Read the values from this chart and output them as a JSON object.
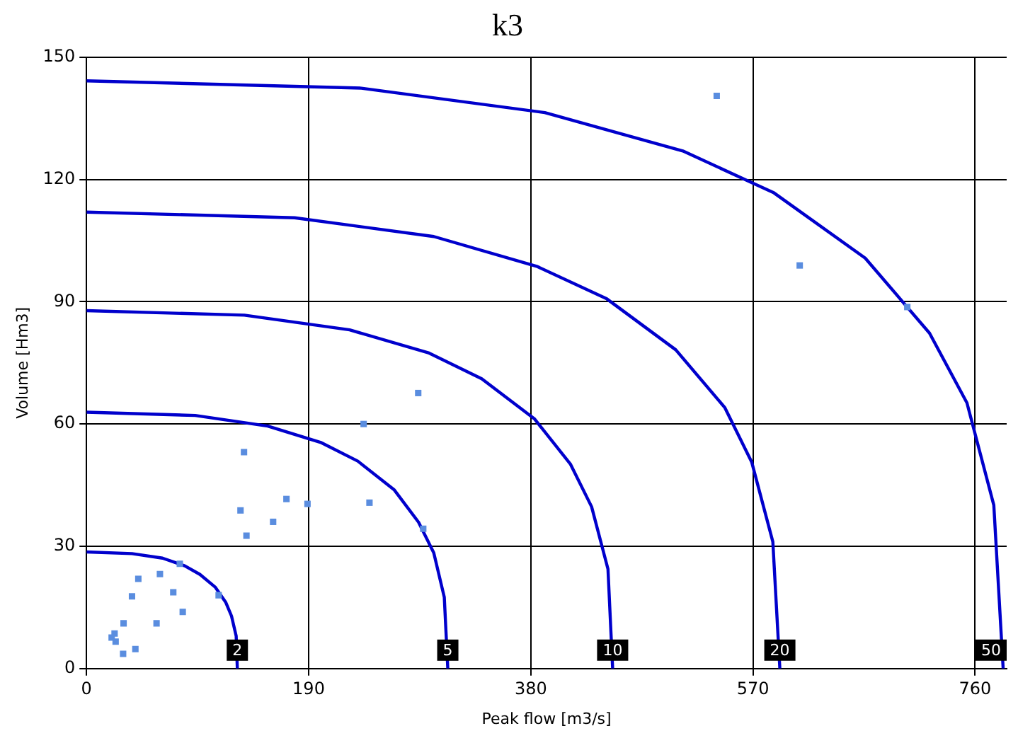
{
  "chart_data": {
    "type": "scatter",
    "title": "k3",
    "xlabel": "Peak flow [m3/s]",
    "ylabel": "Volume [Hm3]",
    "xlim": [
      0,
      787
    ],
    "xticks": [
      0,
      190,
      380,
      570,
      760
    ],
    "ylim": [
      0,
      150
    ],
    "yticks": [
      0,
      30,
      60,
      90,
      120,
      150
    ],
    "grid": true,
    "legend": false,
    "series": [
      {
        "type": "scatter",
        "marker": "square",
        "color": "#5a8ddf",
        "x": [
          134.7,
          283.7,
          237,
          131.7,
          171,
          189,
          159.6,
          136.8,
          242,
          288,
          79.8,
          62.8,
          44.3,
          38.9,
          74.2,
          113,
          82.3,
          31.7,
          59.9,
          24,
          21.5,
          24.9,
          41.8,
          31.3,
          539,
          610,
          702
        ],
        "values": [
          53.1,
          67.6,
          60,
          38.8,
          41.6,
          40.4,
          36,
          32.6,
          40.7,
          34.3,
          25.7,
          23.2,
          22,
          17.7,
          18.7,
          18,
          13.9,
          11.1,
          11.1,
          8.6,
          7.6,
          6.6,
          4.8,
          3.6,
          140.5,
          98.9,
          88.7
        ]
      },
      {
        "type": "line",
        "name": "2",
        "color": "#0000cc",
        "marker": "none",
        "x": [
          0,
          39,
          65,
          84,
          97,
          110,
          119,
          124,
          128,
          129
        ],
        "values": [
          28.6,
          28.2,
          27.1,
          25.2,
          23.1,
          20,
          16.3,
          12.9,
          8,
          0
        ]
      },
      {
        "type": "line",
        "name": "5",
        "color": "#0000cc",
        "marker": "none",
        "x": [
          0,
          93,
          155,
          201,
          232,
          263,
          284,
          297,
          306,
          309
        ],
        "values": [
          62.9,
          62.1,
          59.5,
          55.4,
          50.9,
          43.9,
          35.9,
          28.4,
          17.5,
          0
        ]
      },
      {
        "type": "line",
        "name": "10",
        "color": "#0000cc",
        "marker": "none",
        "x": [
          0,
          135,
          225,
          293,
          338,
          383,
          414,
          432,
          446,
          450
        ],
        "values": [
          87.8,
          86.7,
          83.1,
          77.4,
          71.1,
          61.3,
          50.1,
          39.7,
          24.4,
          0
        ]
      },
      {
        "type": "line",
        "name": "20",
        "color": "#0000cc",
        "marker": "none",
        "x": [
          0,
          178,
          297,
          385,
          445,
          504,
          546,
          569,
          587,
          593
        ],
        "values": [
          112,
          110.6,
          106,
          98.7,
          90.7,
          78.2,
          64,
          50.6,
          31.1,
          0
        ]
      },
      {
        "type": "line",
        "name": "50",
        "color": "#0000cc",
        "marker": "none",
        "x": [
          0,
          235,
          392,
          510,
          588,
          666,
          721,
          753,
          776,
          784
        ],
        "values": [
          144.2,
          142.4,
          136.4,
          127,
          116.7,
          100.7,
          82.3,
          65.2,
          40.1,
          0
        ]
      }
    ]
  }
}
